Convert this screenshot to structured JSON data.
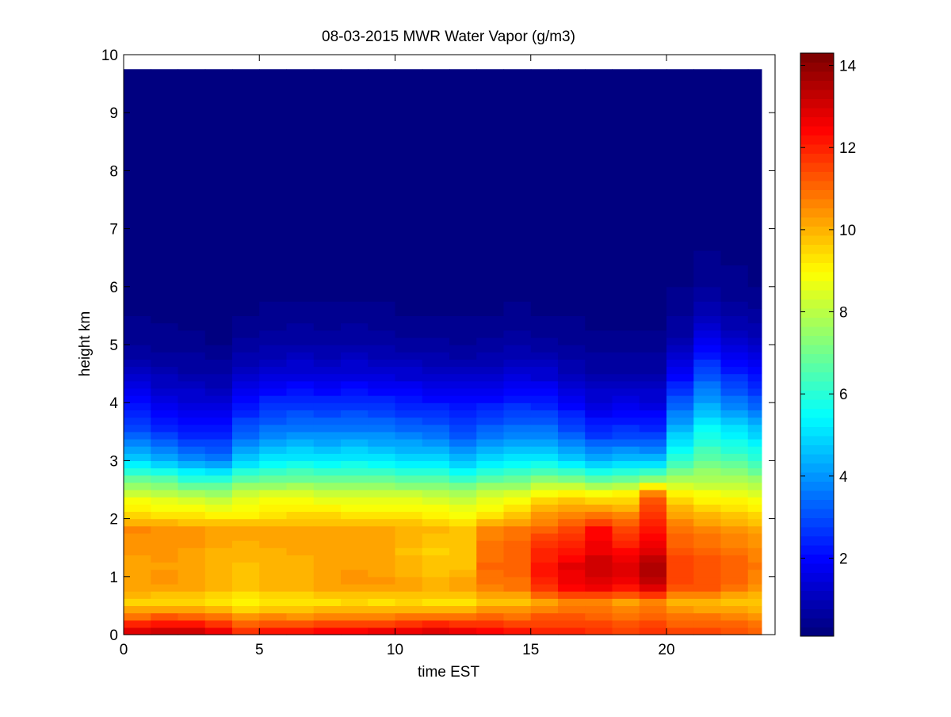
{
  "chart_data": {
    "type": "heatmap",
    "title": "08-03-2015 MWR Water Vapor (g/m3)",
    "xlabel": "time EST",
    "ylabel": "height km",
    "xlim": [
      0,
      24
    ],
    "ylim": [
      0,
      10
    ],
    "x_ticks": [
      0,
      5,
      10,
      15,
      20
    ],
    "y_ticks": [
      0,
      1,
      2,
      3,
      4,
      5,
      6,
      7,
      8,
      9,
      10
    ],
    "colorbar": {
      "colormap": "jet",
      "range": [
        0.1,
        14.3
      ],
      "ticks": [
        2,
        4,
        6,
        8,
        10,
        12,
        14
      ]
    },
    "hours": [
      0.5,
      1.5,
      2.5,
      3.5,
      4.5,
      5.5,
      6.5,
      7.5,
      8.5,
      9.5,
      10.5,
      11.5,
      12.5,
      13.5,
      14.5,
      15.5,
      16.5,
      17.5,
      18.5,
      19.5,
      20.5,
      21.5,
      22.5,
      23.5
    ],
    "data_extent": {
      "x": [
        0,
        23.5
      ],
      "y": [
        0,
        9.75
      ]
    },
    "profile_heights_km": [
      0.0,
      0.3,
      0.55,
      0.85,
      1.2,
      1.5,
      1.8,
      2.1,
      2.4,
      2.7,
      3.0,
      3.5,
      4.0,
      4.5,
      5.0,
      5.5,
      6.0,
      7.0,
      8.0,
      9.75
    ],
    "profiles_g_m3": [
      [
        13.4,
        11.0,
        9.6,
        10.3,
        10.1,
        10.4,
        10.6,
        9.4,
        8.5,
        6.8,
        4.8,
        3.0,
        2.0,
        1.1,
        0.5,
        0.3,
        0.2,
        0.1,
        0.1,
        0.1
      ],
      [
        13.5,
        11.3,
        9.4,
        10.4,
        10.3,
        10.5,
        10.5,
        9.2,
        8.3,
        6.5,
        4.4,
        2.6,
        1.7,
        0.9,
        0.4,
        0.3,
        0.2,
        0.1,
        0.1,
        0.1
      ],
      [
        13.6,
        11.2,
        9.4,
        10.2,
        10.2,
        10.3,
        10.4,
        9.2,
        8.0,
        6.0,
        4.0,
        2.3,
        1.5,
        0.8,
        0.4,
        0.2,
        0.2,
        0.1,
        0.1,
        0.1
      ],
      [
        13.2,
        11.0,
        9.2,
        10.0,
        10.0,
        10.1,
        10.2,
        9.0,
        7.9,
        5.8,
        3.8,
        2.2,
        1.4,
        0.7,
        0.3,
        0.2,
        0.2,
        0.1,
        0.1,
        0.1
      ],
      [
        12.2,
        10.4,
        9.0,
        9.8,
        9.8,
        10.0,
        10.2,
        9.0,
        8.5,
        6.6,
        4.8,
        3.2,
        2.1,
        1.2,
        0.6,
        0.3,
        0.2,
        0.1,
        0.1,
        0.1
      ],
      [
        12.6,
        10.6,
        9.2,
        10.0,
        9.9,
        10.1,
        10.3,
        9.2,
        8.6,
        6.8,
        5.2,
        3.6,
        2.5,
        1.4,
        0.7,
        0.4,
        0.2,
        0.1,
        0.1,
        0.1
      ],
      [
        12.5,
        10.5,
        9.2,
        10.0,
        10.0,
        10.2,
        10.3,
        9.3,
        8.6,
        6.9,
        5.4,
        3.8,
        2.6,
        1.5,
        0.8,
        0.4,
        0.2,
        0.1,
        0.1,
        0.1
      ],
      [
        12.8,
        10.6,
        9.3,
        10.2,
        10.1,
        10.3,
        10.3,
        9.3,
        8.5,
        6.8,
        5.3,
        3.7,
        2.5,
        1.4,
        0.7,
        0.4,
        0.2,
        0.1,
        0.1,
        0.1
      ],
      [
        12.9,
        10.8,
        9.4,
        10.4,
        10.3,
        10.2,
        10.2,
        9.2,
        8.4,
        6.8,
        5.4,
        3.8,
        2.6,
        1.5,
        0.8,
        0.4,
        0.2,
        0.1,
        0.1,
        0.1
      ],
      [
        13.0,
        10.8,
        9.3,
        10.4,
        10.2,
        10.3,
        10.2,
        9.2,
        8.4,
        6.7,
        5.3,
        3.7,
        2.5,
        1.4,
        0.7,
        0.4,
        0.2,
        0.1,
        0.1,
        0.1
      ],
      [
        13.2,
        10.9,
        9.4,
        10.2,
        10.0,
        9.8,
        10.1,
        9.2,
        8.3,
        6.6,
        5.1,
        3.5,
        2.3,
        1.3,
        0.6,
        0.3,
        0.2,
        0.1,
        0.1,
        0.1
      ],
      [
        13.3,
        11.0,
        9.3,
        10.1,
        9.7,
        9.6,
        9.9,
        9.0,
        8.2,
        6.5,
        5.0,
        3.4,
        2.2,
        1.2,
        0.6,
        0.3,
        0.2,
        0.1,
        0.1,
        0.1
      ],
      [
        13.2,
        11.0,
        9.3,
        10.2,
        9.8,
        9.7,
        9.9,
        8.8,
        8.0,
        6.2,
        4.6,
        3.0,
        2.0,
        1.1,
        0.5,
        0.3,
        0.2,
        0.1,
        0.1,
        0.1
      ],
      [
        12.8,
        11.2,
        9.6,
        10.8,
        11.0,
        10.8,
        10.6,
        9.2,
        8.4,
        6.6,
        5.0,
        3.4,
        2.2,
        1.2,
        0.6,
        0.3,
        0.2,
        0.1,
        0.1,
        0.1
      ],
      [
        12.4,
        11.0,
        9.8,
        10.9,
        11.1,
        11.1,
        10.8,
        9.6,
        8.6,
        6.7,
        5.2,
        3.6,
        2.4,
        1.4,
        0.7,
        0.4,
        0.2,
        0.1,
        0.1,
        0.1
      ],
      [
        12.2,
        11.3,
        10.2,
        12.0,
        12.2,
        11.8,
        11.2,
        10.2,
        9.2,
        7.2,
        5.4,
        3.6,
        2.3,
        1.3,
        0.6,
        0.3,
        0.2,
        0.1,
        0.1,
        0.1
      ],
      [
        12.0,
        11.4,
        10.5,
        12.6,
        12.8,
        12.0,
        11.6,
        10.4,
        9.4,
        7.0,
        4.9,
        3.1,
        1.9,
        1.0,
        0.5,
        0.3,
        0.2,
        0.1,
        0.1,
        0.1
      ],
      [
        12.0,
        11.2,
        10.6,
        12.8,
        13.2,
        12.6,
        12.4,
        10.6,
        9.2,
        6.6,
        4.4,
        2.5,
        1.5,
        0.8,
        0.4,
        0.2,
        0.2,
        0.1,
        0.1,
        0.1
      ],
      [
        11.8,
        11.0,
        10.2,
        12.6,
        12.9,
        12.2,
        11.6,
        10.4,
        9.3,
        6.8,
        4.6,
        2.7,
        1.6,
        0.8,
        0.4,
        0.2,
        0.2,
        0.1,
        0.1,
        0.1
      ],
      [
        12.0,
        11.2,
        10.6,
        13.3,
        13.6,
        12.6,
        12.3,
        11.6,
        11.2,
        7.2,
        4.6,
        2.6,
        1.5,
        0.8,
        0.4,
        0.2,
        0.2,
        0.1,
        0.1,
        0.1
      ],
      [
        11.8,
        10.8,
        10.0,
        11.6,
        11.6,
        11.2,
        11.0,
        10.2,
        9.2,
        7.6,
        6.2,
        4.6,
        3.2,
        1.8,
        0.9,
        0.5,
        0.3,
        0.1,
        0.1,
        0.1
      ],
      [
        11.8,
        10.8,
        9.9,
        11.4,
        11.4,
        11.0,
        10.6,
        9.8,
        8.9,
        7.8,
        6.8,
        5.6,
        4.2,
        3.0,
        1.8,
        1.0,
        0.5,
        0.2,
        0.1,
        0.1
      ],
      [
        11.6,
        10.6,
        9.8,
        10.9,
        11.2,
        10.8,
        10.4,
        9.6,
        8.8,
        7.6,
        6.6,
        5.2,
        3.6,
        2.4,
        1.4,
        0.7,
        0.4,
        0.2,
        0.1,
        0.1
      ],
      [
        11.4,
        10.4,
        9.6,
        10.6,
        10.8,
        10.6,
        10.2,
        9.4,
        8.6,
        7.4,
        6.2,
        4.8,
        3.2,
        2.0,
        1.1,
        0.6,
        0.3,
        0.2,
        0.1,
        0.1
      ]
    ]
  }
}
